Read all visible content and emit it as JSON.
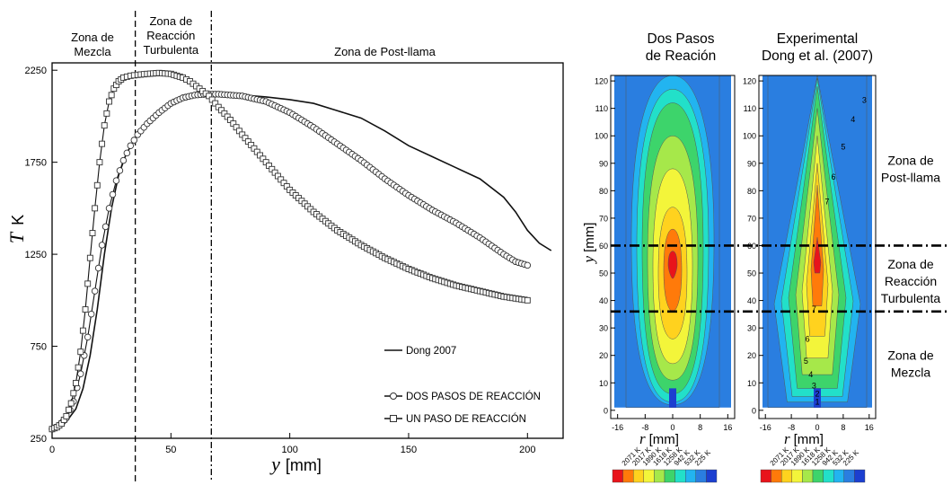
{
  "chart_data": [
    {
      "type": "line",
      "xlabel_var": "y",
      "xlabel_unit": "[mm]",
      "ylabel_var": "T",
      "ylabel_unit": "K",
      "xlim": [
        0,
        215
      ],
      "ylim": [
        250,
        2290
      ],
      "xticks": [
        0,
        50,
        100,
        150,
        200
      ],
      "yticks": [
        250,
        750,
        1250,
        1750,
        2250
      ],
      "grid": false,
      "legend_position": "lower-right",
      "zone_boundaries": [
        35,
        67
      ],
      "zones": [
        {
          "lines": [
            "Zona de",
            "Mezcla"
          ],
          "x_center": 17
        },
        {
          "lines": [
            "Zona de",
            "Reacción",
            "Turbulenta"
          ],
          "x_center": 50
        },
        {
          "lines": [
            "Zona de Post-llama"
          ],
          "x_center": 140
        }
      ],
      "series": [
        {
          "name": "Dong 2007",
          "marker": "none",
          "x": [
            0,
            3,
            6,
            10,
            13,
            16,
            19,
            22,
            25,
            28,
            31,
            35,
            40,
            45,
            50,
            55,
            60,
            65,
            70,
            80,
            90,
            100,
            110,
            120,
            130,
            140,
            150,
            160,
            170,
            180,
            190,
            195,
            200,
            205,
            210
          ],
          "y": [
            300,
            310,
            340,
            410,
            520,
            700,
            950,
            1250,
            1500,
            1680,
            1790,
            1880,
            1960,
            2030,
            2080,
            2110,
            2125,
            2125,
            2120,
            2115,
            2105,
            2090,
            2070,
            2030,
            1990,
            1920,
            1840,
            1780,
            1720,
            1660,
            1560,
            1480,
            1380,
            1310,
            1270
          ]
        },
        {
          "name": "DOS PASOS DE REACCIÓN",
          "marker": "circle",
          "x": [
            0,
            3,
            6,
            9,
            12,
            15,
            18,
            21,
            24,
            27,
            30,
            33,
            36,
            40,
            45,
            50,
            55,
            60,
            65,
            70,
            75,
            80,
            90,
            100,
            110,
            120,
            130,
            140,
            150,
            160,
            170,
            180,
            190,
            195,
            200
          ],
          "y": [
            300,
            320,
            360,
            450,
            600,
            800,
            1050,
            1300,
            1500,
            1650,
            1760,
            1840,
            1900,
            1960,
            2020,
            2070,
            2100,
            2115,
            2120,
            2120,
            2115,
            2110,
            2080,
            2020,
            1940,
            1850,
            1760,
            1660,
            1570,
            1490,
            1420,
            1340,
            1250,
            1210,
            1190
          ]
        },
        {
          "name": "UN PASO DE REACCIÓN",
          "marker": "square",
          "x": [
            0,
            2,
            4,
            6,
            8,
            10,
            12,
            14,
            16,
            18,
            20,
            22,
            24,
            26,
            28,
            30,
            33,
            36,
            40,
            45,
            50,
            55,
            58,
            62,
            66,
            70,
            75,
            80,
            90,
            100,
            110,
            120,
            130,
            140,
            150,
            160,
            170,
            180,
            190,
            200
          ],
          "y": [
            300,
            310,
            330,
            370,
            440,
            550,
            720,
            950,
            1230,
            1500,
            1750,
            1950,
            2080,
            2150,
            2190,
            2210,
            2220,
            2225,
            2230,
            2235,
            2230,
            2210,
            2190,
            2150,
            2110,
            2050,
            1980,
            1900,
            1750,
            1600,
            1480,
            1380,
            1300,
            1230,
            1170,
            1120,
            1080,
            1050,
            1020,
            1000
          ]
        }
      ]
    },
    {
      "type": "heatmap",
      "panels": [
        {
          "title": [
            "Dos Pasos",
            "de Reación"
          ],
          "variant": "sim"
        },
        {
          "title": [
            "Experimental",
            "Dong et al. (2007)"
          ],
          "variant": "exp"
        }
      ],
      "xlabel_var": "r",
      "xlabel_unit": "[mm]",
      "ylabel_var": "y",
      "ylabel_unit": "[mm]",
      "xlim": [
        -18,
        18
      ],
      "ylim": [
        -3,
        122
      ],
      "xticks_sim": [
        "-16",
        "-8",
        "0",
        "8",
        "16"
      ],
      "xticks_exp": [
        "-16",
        "-8",
        "0",
        "8",
        "16"
      ],
      "xtick_values": [
        -16,
        -8,
        0,
        8,
        16
      ],
      "yticks": [
        0,
        10,
        20,
        30,
        40,
        50,
        60,
        70,
        80,
        90,
        100,
        110,
        120
      ],
      "zone_lines_y": [
        60,
        36
      ],
      "right_zone_labels": [
        {
          "lines": [
            "Zona de",
            "Post-llama"
          ],
          "y_center": 88
        },
        {
          "lines": [
            "Zona de",
            "Reacción",
            "Turbulenta"
          ],
          "y_center": 47
        },
        {
          "lines": [
            "Zona de",
            "Mezcla"
          ],
          "y_center": 17
        }
      ],
      "contour_labels_exp": [
        {
          "text": "3",
          "r": 14.5,
          "y": 113
        },
        {
          "text": "4",
          "r": 11,
          "y": 106
        },
        {
          "text": "5",
          "r": 8,
          "y": 96
        },
        {
          "text": "6",
          "r": 5,
          "y": 85
        },
        {
          "text": "7",
          "r": 3,
          "y": 76
        },
        {
          "text": "7",
          "r": -1,
          "y": 37
        },
        {
          "text": "6",
          "r": -3,
          "y": 26
        },
        {
          "text": "5",
          "r": -3.5,
          "y": 18
        },
        {
          "text": "4",
          "r": -2,
          "y": 13
        },
        {
          "text": "3",
          "r": -1,
          "y": 9
        },
        {
          "text": "2",
          "r": 0,
          "y": 6
        },
        {
          "text": "1",
          "r": 0,
          "y": 3
        }
      ],
      "colorbar": {
        "labels": [
          "2071 K",
          "2017 K",
          "1890 K",
          "1618 K",
          "1258 K",
          "942 K",
          "532 K",
          "225 K"
        ],
        "colors": [
          "#e8141b",
          "#ff7a0a",
          "#ffd21e",
          "#f3f53a",
          "#a6e84a",
          "#3dd46b",
          "#22e0c9",
          "#22b4f0",
          "#2a7ee0",
          "#1c3fd0"
        ]
      }
    }
  ]
}
